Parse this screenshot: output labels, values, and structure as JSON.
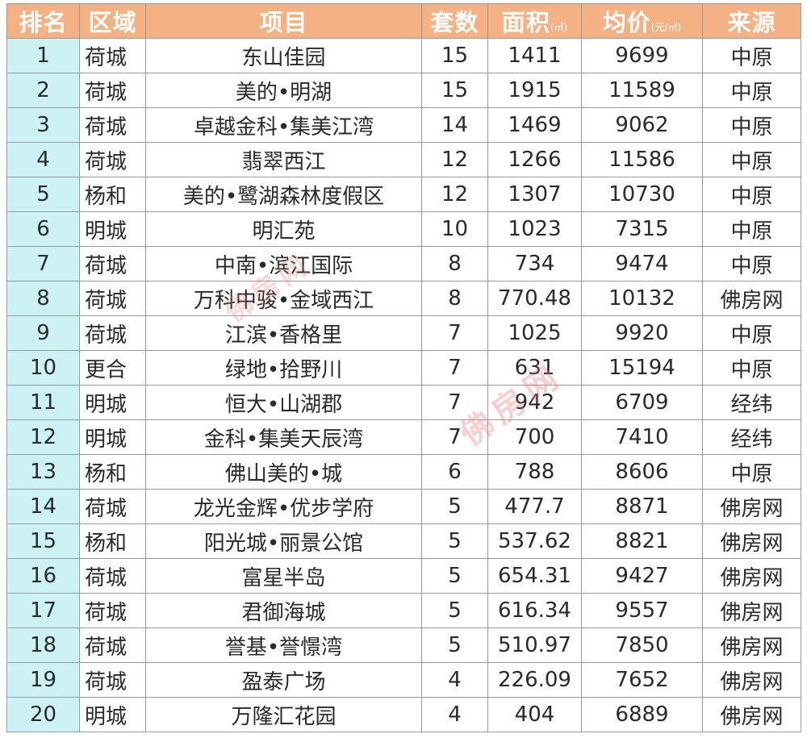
{
  "table": {
    "headers": {
      "rank": "排名",
      "district": "区域",
      "project": "项目",
      "units": "套数",
      "area": "面积",
      "area_unit": "(㎡)",
      "price": "均价",
      "price_unit": "(元/㎡)",
      "source": "来源"
    },
    "rows": [
      {
        "rank": "1",
        "district": "荷城",
        "project": "东山佳园",
        "units": "15",
        "area": "1411",
        "price": "9699",
        "source": "中原"
      },
      {
        "rank": "2",
        "district": "荷城",
        "project": "美的•明湖",
        "units": "15",
        "area": "1915",
        "price": "11589",
        "source": "中原"
      },
      {
        "rank": "3",
        "district": "荷城",
        "project": "卓越金科•集美江湾",
        "units": "14",
        "area": "1469",
        "price": "9062",
        "source": "中原"
      },
      {
        "rank": "4",
        "district": "荷城",
        "project": "翡翠西江",
        "units": "12",
        "area": "1266",
        "price": "11586",
        "source": "中原"
      },
      {
        "rank": "5",
        "district": "杨和",
        "project": "美的•鹭湖森林度假区",
        "units": "12",
        "area": "1307",
        "price": "10730",
        "source": "中原"
      },
      {
        "rank": "6",
        "district": "明城",
        "project": "明汇苑",
        "units": "10",
        "area": "1023",
        "price": "7315",
        "source": "中原"
      },
      {
        "rank": "7",
        "district": "荷城",
        "project": "中南•滨江国际",
        "units": "8",
        "area": "734",
        "price": "9474",
        "source": "中原"
      },
      {
        "rank": "8",
        "district": "荷城",
        "project": "万科中骏•金域西江",
        "units": "8",
        "area": "770.48",
        "price": "10132",
        "source": "佛房网"
      },
      {
        "rank": "9",
        "district": "荷城",
        "project": "江滨•香格里",
        "units": "7",
        "area": "1025",
        "price": "9920",
        "source": "中原"
      },
      {
        "rank": "10",
        "district": "更合",
        "project": "绿地•拾野川",
        "units": "7",
        "area": "631",
        "price": "15194",
        "source": "中原"
      },
      {
        "rank": "11",
        "district": "明城",
        "project": "恒大•山湖郡",
        "units": "7",
        "area": "942",
        "price": "6709",
        "source": "经纬"
      },
      {
        "rank": "12",
        "district": "明城",
        "project": "金科•集美天辰湾",
        "units": "7",
        "area": "700",
        "price": "7410",
        "source": "经纬"
      },
      {
        "rank": "13",
        "district": "杨和",
        "project": "佛山美的•城",
        "units": "6",
        "area": "788",
        "price": "8606",
        "source": "中原"
      },
      {
        "rank": "14",
        "district": "荷城",
        "project": "龙光金辉•优步学府",
        "units": "5",
        "area": "477.7",
        "price": "8871",
        "source": "佛房网"
      },
      {
        "rank": "15",
        "district": "杨和",
        "project": "阳光城•丽景公馆",
        "units": "5",
        "area": "537.62",
        "price": "8821",
        "source": "佛房网"
      },
      {
        "rank": "16",
        "district": "荷城",
        "project": "富星半岛",
        "units": "5",
        "area": "654.31",
        "price": "9427",
        "source": "佛房网"
      },
      {
        "rank": "17",
        "district": "荷城",
        "project": "君御海城",
        "units": "5",
        "area": "616.34",
        "price": "9557",
        "source": "佛房网"
      },
      {
        "rank": "18",
        "district": "荷城",
        "project": "誉基•誉憬湾",
        "units": "5",
        "area": "510.97",
        "price": "7850",
        "source": "佛房网"
      },
      {
        "rank": "19",
        "district": "荷城",
        "project": "盈泰广场",
        "units": "4",
        "area": "226.09",
        "price": "7652",
        "source": "佛房网"
      },
      {
        "rank": "20",
        "district": "明城",
        "project": "万隆汇花园",
        "units": "4",
        "area": "404",
        "price": "6889",
        "source": "佛房网"
      }
    ]
  },
  "watermark": {
    "text": "佛房网",
    "color": "#e67878"
  },
  "colors": {
    "header_bg": "#f4b183",
    "rank_col_bg": "#ccf2f6",
    "border": "#9a9a9a"
  }
}
